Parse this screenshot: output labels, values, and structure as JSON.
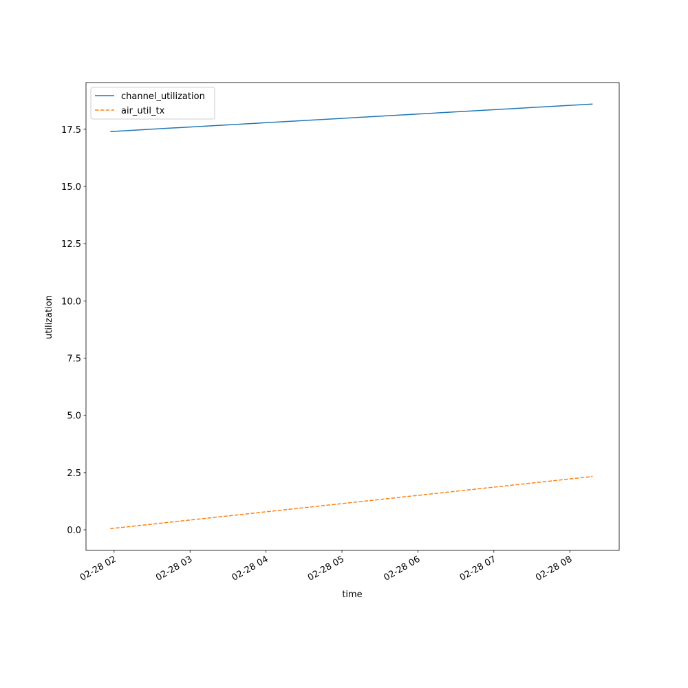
{
  "chart_data": {
    "type": "line",
    "xlabel": "time",
    "ylabel": "utilization",
    "x": [
      1.95,
      8.3
    ],
    "series": [
      {
        "name": "channel_utilization",
        "color": "#1f77b4",
        "linestyle": "solid",
        "values": [
          17.4,
          18.6
        ]
      },
      {
        "name": "air_util_tx",
        "color": "#ff7f0e",
        "linestyle": "dashed",
        "values": [
          0.05,
          2.33
        ]
      }
    ],
    "xlim": [
      1.63,
      8.65
    ],
    "xticks": [
      {
        "value": 2,
        "label": "02-28 02"
      },
      {
        "value": 3,
        "label": "02-28 03"
      },
      {
        "value": 4,
        "label": "02-28 04"
      },
      {
        "value": 5,
        "label": "02-28 05"
      },
      {
        "value": 6,
        "label": "02-28 06"
      },
      {
        "value": 7,
        "label": "02-28 07"
      },
      {
        "value": 8,
        "label": "02-28 08"
      }
    ],
    "ylim": [
      -0.9,
      19.54
    ],
    "yticks": [
      {
        "value": 0,
        "label": "0.0"
      },
      2.5,
      {
        "value": 5,
        "label": "5.0"
      },
      7.5,
      {
        "value": 10,
        "label": "10.0"
      },
      12.5,
      {
        "value": 15,
        "label": "15.0"
      },
      17.5
    ],
    "legend": "upper left"
  }
}
